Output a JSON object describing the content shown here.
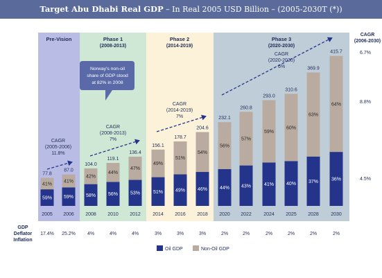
{
  "title": {
    "main": "Target Abu Dhabi Real GDP",
    "subtitle": " – In Real 2005 USD Billion – (2005-2030T (*))"
  },
  "colors": {
    "oil": "#24348a",
    "non_oil": "#b9aba0",
    "pre_vision_bg": "#b9bde6",
    "phase1_bg": "#cfe8d6",
    "phase2_bg": "#fbf2d9",
    "phase3_bg": "#bfcdd9",
    "title_bar": "#5a6a9a",
    "arrow": "#24348a"
  },
  "phases": [
    {
      "name": "Pre-Vision",
      "years": ""
    },
    {
      "name": "Phase 1",
      "years": "(2008-2013)"
    },
    {
      "name": "Phase 2",
      "years": "(2014-2019)"
    },
    {
      "name": "Phase 3",
      "years": "(2020-2030)"
    }
  ],
  "cagr_notes": [
    {
      "label": "CAGR",
      "period": "(2005-2006)",
      "value": "11.8%"
    },
    {
      "label": "CAGR",
      "period": "(2008-2013)",
      "value": "7%"
    },
    {
      "label": "CAGR",
      "period": "(2014-2019)",
      "value": "7%"
    },
    {
      "label": "CAGR",
      "period": "(2020-2030)",
      "value": "6%"
    }
  ],
  "callout": [
    "Norway's non-oil",
    "share of GDP stood",
    "at 82% in 2008"
  ],
  "right_panel": {
    "header": [
      "CAGR",
      "(2006-2030)"
    ],
    "total": "6.7%",
    "non_oil": "8.8%",
    "oil": "4.5%"
  },
  "deflator": {
    "label": [
      "GDP",
      "Deflator",
      "Inflation"
    ],
    "values": [
      "17.4%",
      "25.2%",
      "4%",
      "4%",
      "4%",
      "3%",
      "3%",
      "3%",
      "2%",
      "2%",
      "2%",
      "2%",
      "2%",
      "2%"
    ]
  },
  "legend": {
    "oil": "Oil GDP",
    "non_oil": "Non-Oil GDP"
  },
  "chart_data": {
    "type": "bar",
    "stacked": true,
    "title": "Target Abu Dhabi Real GDP – In Real 2005 USD Billion – (2005-2030T (*))",
    "categories": [
      "2005",
      "2006",
      "2008",
      "2010",
      "2012",
      "2014",
      "2016",
      "2018",
      "2020",
      "2022",
      "2024",
      "2025",
      "2028",
      "2030"
    ],
    "totals": [
      77.8,
      87.0,
      104.0,
      119.1,
      136.4,
      156.1,
      178.7,
      204.6,
      232.1,
      260.8,
      293.0,
      310.6,
      369.9,
      415.7
    ],
    "total_labels": [
      "77.8",
      "87.0",
      "104.0",
      "119.1",
      "136.4",
      "156.1",
      "178.7",
      "204.6",
      "232.1",
      "260.8",
      "293.0",
      "310.6",
      "369.9",
      "415.7"
    ],
    "series": [
      {
        "name": "Oil GDP",
        "share_labels": [
          "59%",
          "59%",
          "58%",
          "56%",
          "53%",
          "51%",
          "49%",
          "46%",
          "44%",
          "43%",
          "41%",
          "40%",
          "37%",
          "36%"
        ]
      },
      {
        "name": "Non-Oil GDP",
        "share_labels": [
          "41%",
          "41%",
          "42%",
          "44%",
          "47%",
          "49%",
          "51%",
          "54%",
          "56%",
          "57%",
          "59%",
          "60%",
          "63%",
          "64%"
        ]
      }
    ],
    "ylim": [
      0,
      440
    ],
    "legend_position": "bottom"
  }
}
